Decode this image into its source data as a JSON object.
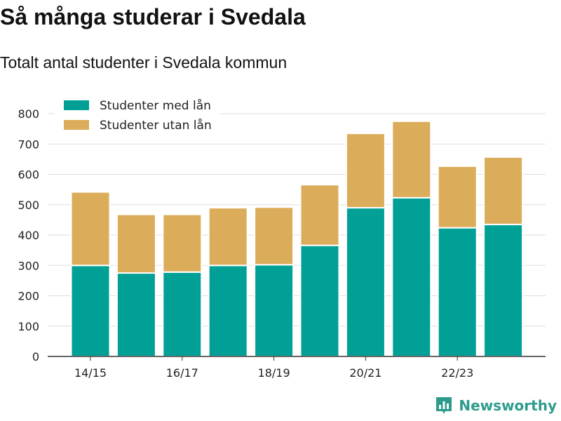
{
  "title": "Så många studerar i Svedala",
  "subtitle": "Totalt antal studenter i Svedala kommun",
  "logo_text": "Newsworthy",
  "colors": {
    "with_loan": "#00a096",
    "without_loan": "#dbad5a",
    "grid": "#dddddd",
    "axis": "#333333",
    "text": "#222222",
    "brand": "#2d9c8c"
  },
  "chart_data": {
    "type": "bar",
    "stacked": true,
    "categories": [
      "14/15",
      "15/16",
      "16/17",
      "17/18",
      "18/19",
      "19/20",
      "20/21",
      "21/22",
      "22/23",
      "23/24"
    ],
    "x_tick_labels": [
      "14/15",
      "",
      "16/17",
      "",
      "18/19",
      "",
      "20/21",
      "",
      "22/23",
      ""
    ],
    "series": [
      {
        "name": "Studenter med lån",
        "values": [
          300,
          275,
          278,
          300,
          302,
          366,
          490,
          523,
          424,
          435
        ]
      },
      {
        "name": "Studenter utan lån",
        "values": [
          242,
          193,
          190,
          190,
          190,
          200,
          245,
          252,
          203,
          222
        ]
      }
    ],
    "ylim": [
      0,
      800
    ],
    "yticks": [
      0,
      100,
      200,
      300,
      400,
      500,
      600,
      700,
      800
    ],
    "grid": true,
    "legend_position": "top-left",
    "xlabel": "",
    "ylabel": ""
  }
}
